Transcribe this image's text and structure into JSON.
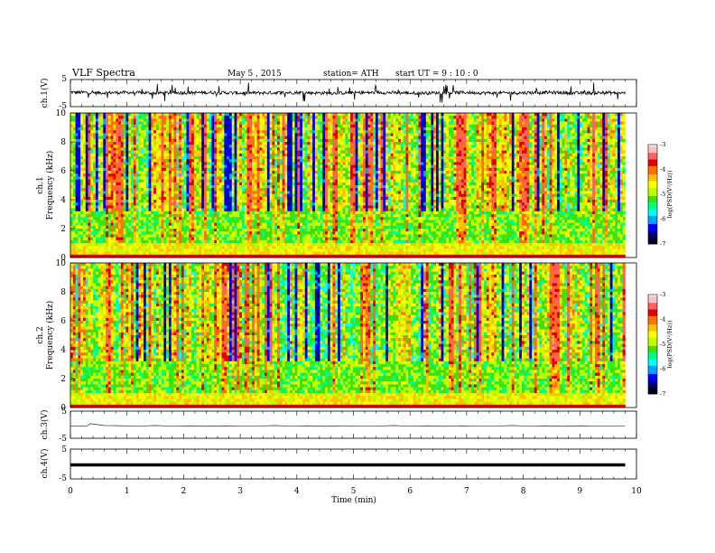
{
  "header": {
    "title": "VLF Spectra",
    "date": "May 5 , 2015",
    "station": "station= ATH",
    "start": "start UT = 9 : 10 : 0"
  },
  "colors": {
    "spectrum_colormap": [
      "#00001e",
      "#000080",
      "#0000ff",
      "#00a0ff",
      "#00ffff",
      "#00ff80",
      "#40e000",
      "#c0ff00",
      "#ffff00",
      "#ffc000",
      "#ff7000",
      "#e00000",
      "#ff6060",
      "#ffc0c0",
      "#ffffff"
    ],
    "trace": "#000000",
    "frame": "#000000"
  },
  "chart_data": [
    {
      "id": "ch1_waveform",
      "type": "line",
      "ylabel": "ch.1(V)",
      "ylim": [
        -5,
        5
      ],
      "yticks": [
        "5",
        "-5"
      ],
      "xlim": [
        0,
        10
      ],
      "x": [
        0,
        0.5,
        1,
        1.5,
        2,
        2.5,
        3,
        3.5,
        4,
        4.5,
        5,
        5.5,
        6,
        6.5,
        7,
        7.5,
        8,
        8.5,
        9,
        9.5,
        9.8
      ],
      "values": [
        0.3,
        0.1,
        0.2,
        0,
        0.1,
        0.2,
        0,
        0.1,
        0.2,
        0,
        0.1,
        0.2,
        0,
        0.1,
        0.2,
        0,
        0.1,
        0.2,
        0,
        0.1,
        0
      ]
    },
    {
      "id": "ch1_spectrogram",
      "type": "heatmap",
      "ylabel": "ch.1\nFrequency (kHz)",
      "yticks": [
        "0",
        "2",
        "4",
        "6",
        "8",
        "10"
      ],
      "ylim": [
        0,
        10
      ],
      "xlim": [
        0,
        9.8
      ],
      "colorbar": {
        "label": "log(PSD(V²/Hz))",
        "ticks": [
          "-3",
          "-4",
          "-5",
          "-6",
          "-7"
        ],
        "range": [
          -7,
          -3
        ]
      }
    },
    {
      "id": "ch2_spectrogram",
      "type": "heatmap",
      "ylabel": "ch.2\nFrequency (kHz)",
      "yticks": [
        "0",
        "2",
        "4",
        "6",
        "8",
        "10"
      ],
      "ylim": [
        0,
        10
      ],
      "xlim": [
        0,
        9.8
      ],
      "colorbar": {
        "label": "log(PSD(V²/Hz))",
        "ticks": [
          "-3",
          "-4",
          "-5",
          "-6",
          "-7"
        ],
        "range": [
          -7,
          -3
        ]
      }
    },
    {
      "id": "ch3_waveform",
      "type": "line",
      "ylabel": "ch.3(V)",
      "ylim": [
        -5,
        5
      ],
      "yticks": [
        "5",
        "-5"
      ],
      "xlim": [
        0,
        10
      ],
      "x": [
        0,
        0.3,
        0.35,
        0.6,
        0.9,
        1.2,
        1.5,
        1.8,
        2.1,
        2.4,
        2.7,
        3,
        3.3,
        3.6,
        3.9,
        4.2,
        4.5,
        4.8,
        5.1,
        5.4,
        5.7,
        6,
        6.3,
        6.6,
        6.9,
        7.2,
        7.5,
        7.8,
        8.1,
        8.4,
        8.7,
        9,
        9.3,
        9.6,
        9.8
      ],
      "values": [
        -0.5,
        -0.4,
        0.4,
        -0.3,
        -0.4,
        -0.5,
        -0.3,
        -0.5,
        -0.4,
        -0.6,
        -0.4,
        -0.5,
        -0.5,
        -0.3,
        -0.5,
        -0.4,
        -0.6,
        -0.4,
        -0.5,
        -0.5,
        -0.3,
        -0.5,
        -0.4,
        -0.6,
        -0.4,
        -0.5,
        -0.5,
        -0.3,
        -0.5,
        -0.4,
        -0.6,
        -0.4,
        -0.5,
        -0.5,
        -0.5
      ]
    },
    {
      "id": "ch4_waveform",
      "type": "line",
      "ylabel": "ch.4(V)",
      "ylim": [
        -5,
        5
      ],
      "yticks": [
        "5",
        "-5"
      ],
      "xlim": [
        0,
        10
      ],
      "x": [
        0,
        9.8
      ],
      "values": [
        -0.3,
        -0.3
      ]
    }
  ],
  "xaxis": {
    "label": "Time (min)",
    "ticks": [
      "0",
      "1",
      "2",
      "3",
      "4",
      "5",
      "6",
      "7",
      "8",
      "9",
      "10"
    ],
    "range": [
      0,
      10
    ]
  }
}
